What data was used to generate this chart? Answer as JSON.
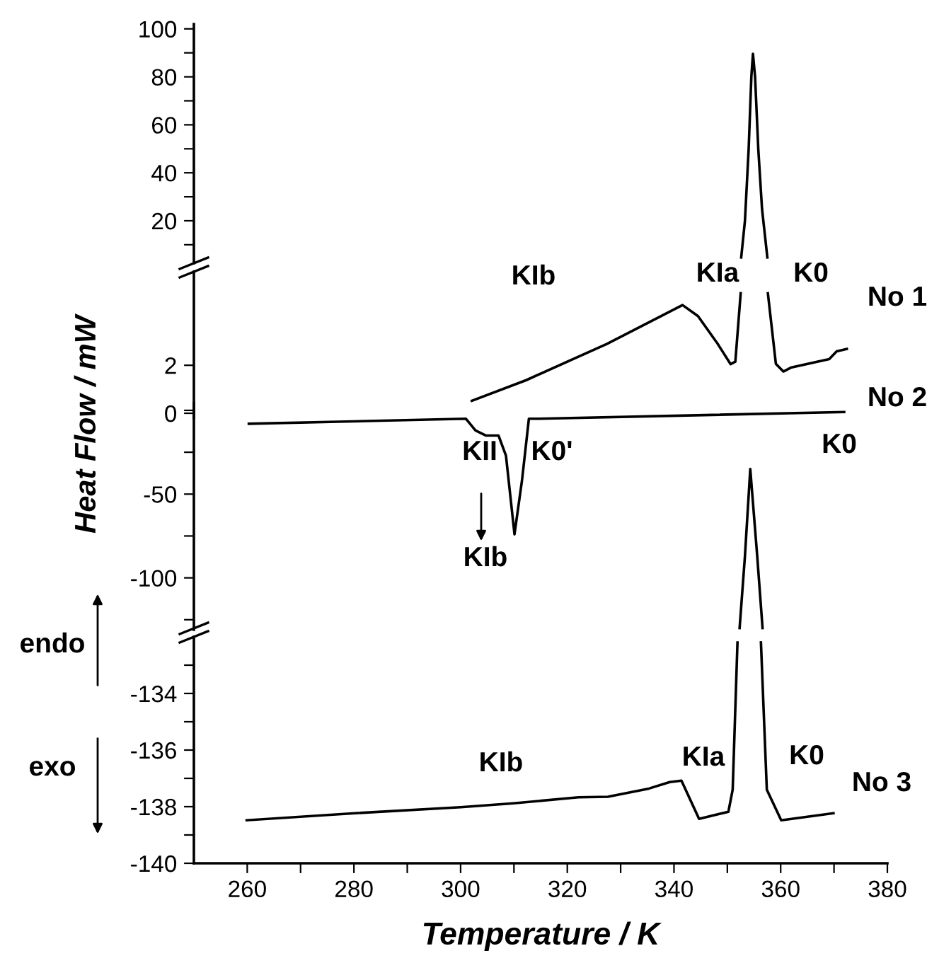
{
  "chart_data": [
    {
      "type": "line",
      "xlim": [
        250,
        380
      ],
      "ylim": [
        2.3,
        102
      ],
      "yticks": [
        {
          "value": 10,
          "label": null
        },
        20,
        {
          "value": 30,
          "label": null
        },
        40,
        {
          "value": 50,
          "label": null
        },
        60,
        {
          "value": 70,
          "label": null
        },
        80,
        {
          "value": 90,
          "label": null
        },
        100
      ],
      "tick_labels": "y",
      "grid": false,
      "series": [
        {
          "color": "#000000",
          "x": [
            352.6,
            353.3,
            354.0,
            354.5,
            354.8,
            355.2,
            355.8,
            356.5,
            357.5
          ],
          "values": [
            4.7,
            20,
            50,
            80,
            89.6,
            80,
            50,
            25,
            4.7
          ]
        }
      ]
    },
    {
      "type": "line",
      "xlim": [
        250,
        380
      ],
      "ylim": [
        -0.2,
        5.9
      ],
      "yticks": [
        0,
        2
      ],
      "tick_labels": "y",
      "grid": false,
      "annotations": [
        "KIb",
        "KIa",
        "K0",
        "No 1"
      ],
      "series": [
        {
          "color": "#000000",
          "x": [
            302.1,
            312.3,
            327.4,
            341.6,
            344.5,
            348.2,
            350.6,
            351.5,
            352.5,
            355.0,
            357.6,
            359.1,
            360.5,
            361.9,
            369.1,
            370.5,
            372.4
          ],
          "values": [
            0.52,
            1.38,
            2.89,
            4.51,
            4.05,
            2.89,
            2.05,
            2.15,
            5.0,
            null,
            5.0,
            2.06,
            1.74,
            1.9,
            2.26,
            2.58,
            2.68
          ]
        }
      ]
    },
    {
      "type": "line",
      "xlim": [
        250,
        380
      ],
      "ylim": [
        -131,
        4.2
      ],
      "yticks": [
        {
          "value": 0,
          "label": null
        },
        {
          "value": -25,
          "label": null
        },
        -50,
        {
          "value": -75,
          "label": null
        },
        -100,
        {
          "value": -125,
          "label": null
        }
      ],
      "tick_labels": "y",
      "grid": false,
      "annotations": [
        "No 2",
        "KII",
        "K0'",
        "KIb",
        "K0"
      ],
      "series": [
        {
          "color": "#000000",
          "x": [
            260.3,
            301.0,
            302.8,
            304.7,
            307.1,
            308.5,
            310.1,
            311.5,
            312.8,
            314.2,
            371.9
          ],
          "values": [
            -8,
            -5,
            -12,
            -15,
            -15,
            -27,
            -74,
            -42,
            -5,
            -5,
            -1
          ]
        },
        {
          "color": "#000000",
          "x": [
            352.3,
            353.3,
            354.3,
            355.6,
            356.6
          ],
          "values": [
            -130,
            -87,
            -35,
            -87,
            -130
          ]
        }
      ]
    },
    {
      "type": "line",
      "xlim": [
        250,
        380
      ],
      "ylim": [
        -140,
        -132
      ],
      "xticks": [
        260,
        {
          "value": 270,
          "label": null
        },
        280,
        {
          "value": 290,
          "label": null
        },
        300,
        {
          "value": 310,
          "label": null
        },
        320,
        {
          "value": 330,
          "label": null
        },
        340,
        {
          "value": 350,
          "label": null
        },
        360,
        {
          "value": 370,
          "label": null
        },
        380
      ],
      "yticks": [
        {
          "value": -133,
          "label": null
        },
        -134,
        {
          "value": -135,
          "label": null
        },
        -136,
        {
          "value": -137,
          "label": null
        },
        -138,
        {
          "value": -139,
          "label": null
        },
        -140
      ],
      "grid": false,
      "xlabel": "Temperature / K",
      "ylabel": "Heat Flow / mW",
      "annotations": [
        "KIb",
        "KIa",
        "K0",
        "No 3",
        "endo",
        "exo"
      ],
      "series": [
        {
          "color": "#000000",
          "x": [
            259.9,
            280.2,
            300.0,
            309.9,
            322.1,
            327.6,
            335.3,
            339.2,
            341.4,
            344.7,
            350.2,
            351.0,
            351.9,
            354.0,
            356.3,
            357.4,
            360.1,
            369.9
          ],
          "values": [
            -138.48,
            -138.23,
            -138.02,
            -137.88,
            -137.67,
            -137.65,
            -137.36,
            -137.13,
            -137.08,
            -138.43,
            -138.18,
            -137.4,
            -132.2,
            null,
            -132.2,
            -137.4,
            -138.48,
            -138.23
          ]
        }
      ]
    }
  ]
}
